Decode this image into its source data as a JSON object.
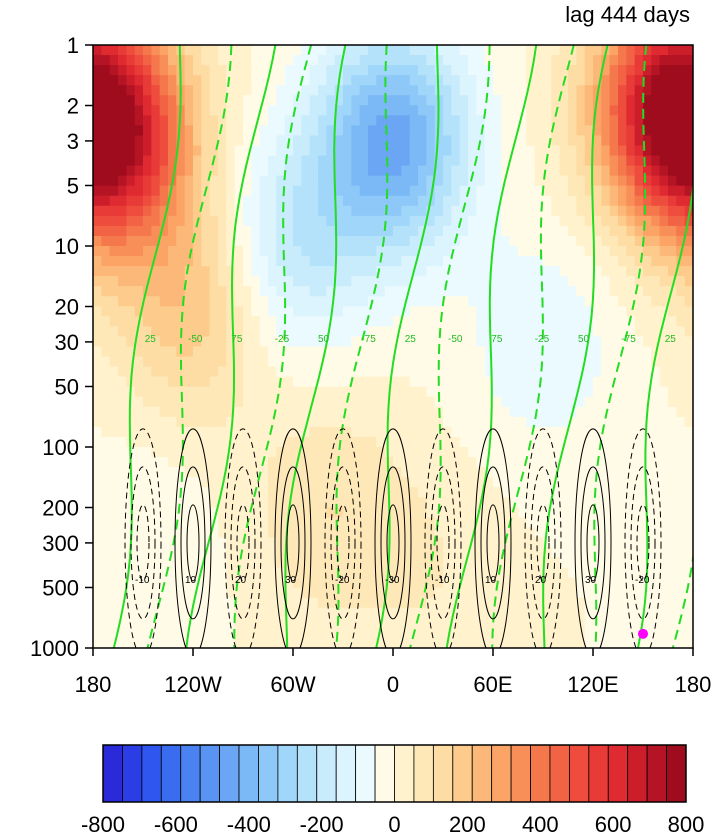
{
  "chart_data": {
    "type": "heatmap",
    "title": "lag 444 days",
    "x_axis": {
      "range": [
        -180,
        180
      ],
      "ticks": [
        -180,
        -120,
        -60,
        0,
        60,
        120,
        180
      ],
      "tick_labels": [
        "180",
        "120W",
        "60W",
        "0",
        "60E",
        "120E",
        "180"
      ]
    },
    "y_axis": {
      "scale": "log",
      "reversed": true,
      "range": [
        1,
        1000
      ],
      "ticks": [
        1,
        2,
        3,
        5,
        10,
        20,
        30,
        50,
        100,
        200,
        300,
        500,
        1000
      ],
      "tick_labels": [
        "1",
        "2",
        "3",
        "5",
        "10",
        "20",
        "30",
        "50",
        "100",
        "200",
        "300",
        "500",
        "1000"
      ]
    },
    "colorbar": {
      "levels": [
        -800,
        -750,
        -700,
        -650,
        -600,
        -550,
        -500,
        -450,
        -400,
        -350,
        -300,
        -250,
        -200,
        -150,
        -100,
        -50,
        0,
        50,
        100,
        150,
        200,
        250,
        300,
        350,
        400,
        450,
        500,
        550,
        600,
        650,
        700,
        750,
        800
      ],
      "tick_labels": [
        "-800",
        "-600",
        "-400",
        "-200",
        "0",
        "200",
        "400",
        "600",
        "800"
      ],
      "colors": [
        "#2a2ad8",
        "#2b3ee6",
        "#2f56ee",
        "#3a6cf0",
        "#4a82f2",
        "#5a94f2",
        "#6aa6f4",
        "#7ab8f6",
        "#8ec8f8",
        "#a0d6fa",
        "#b4e2fb",
        "#c8ecfc",
        "#dcf4fd",
        "#eafafe",
        "#fffbe6",
        "#fff2cc",
        "#ffe8b8",
        "#fedda4",
        "#fdcc8c",
        "#fcb878",
        "#fba466",
        "#f88e58",
        "#f5784c",
        "#f26244",
        "#ee4c3c",
        "#e83a36",
        "#de2a30",
        "#cc1e2a",
        "#b51424",
        "#9e0c1e"
      ]
    },
    "fill_field": {
      "description_units": "filled contour field, interval 50",
      "centers": [
        {
          "lon": -165,
          "p": 3,
          "value": 550
        },
        {
          "lon": 165,
          "p": 2,
          "value": 600
        },
        {
          "lon": 0,
          "p": 3,
          "value": -450
        },
        {
          "lon": -60,
          "p": 10,
          "value": -200
        },
        {
          "lon": 90,
          "p": 30,
          "value": -100
        },
        {
          "lon": -120,
          "p": 20,
          "value": 200
        },
        {
          "lon": -40,
          "p": 200,
          "value": 100
        },
        {
          "lon": 20,
          "p": 400,
          "value": 50
        },
        {
          "lon": -150,
          "p": 300,
          "value": -50
        }
      ]
    },
    "contour_labels": {
      "black": [
        "-10",
        "10",
        "20",
        "30",
        "-20",
        "-30"
      ],
      "green": [
        "25",
        "50",
        "75",
        "-25",
        "-50",
        "-75"
      ]
    },
    "marker": {
      "lon": 150,
      "p": 850,
      "color": "#ff00ff"
    }
  }
}
